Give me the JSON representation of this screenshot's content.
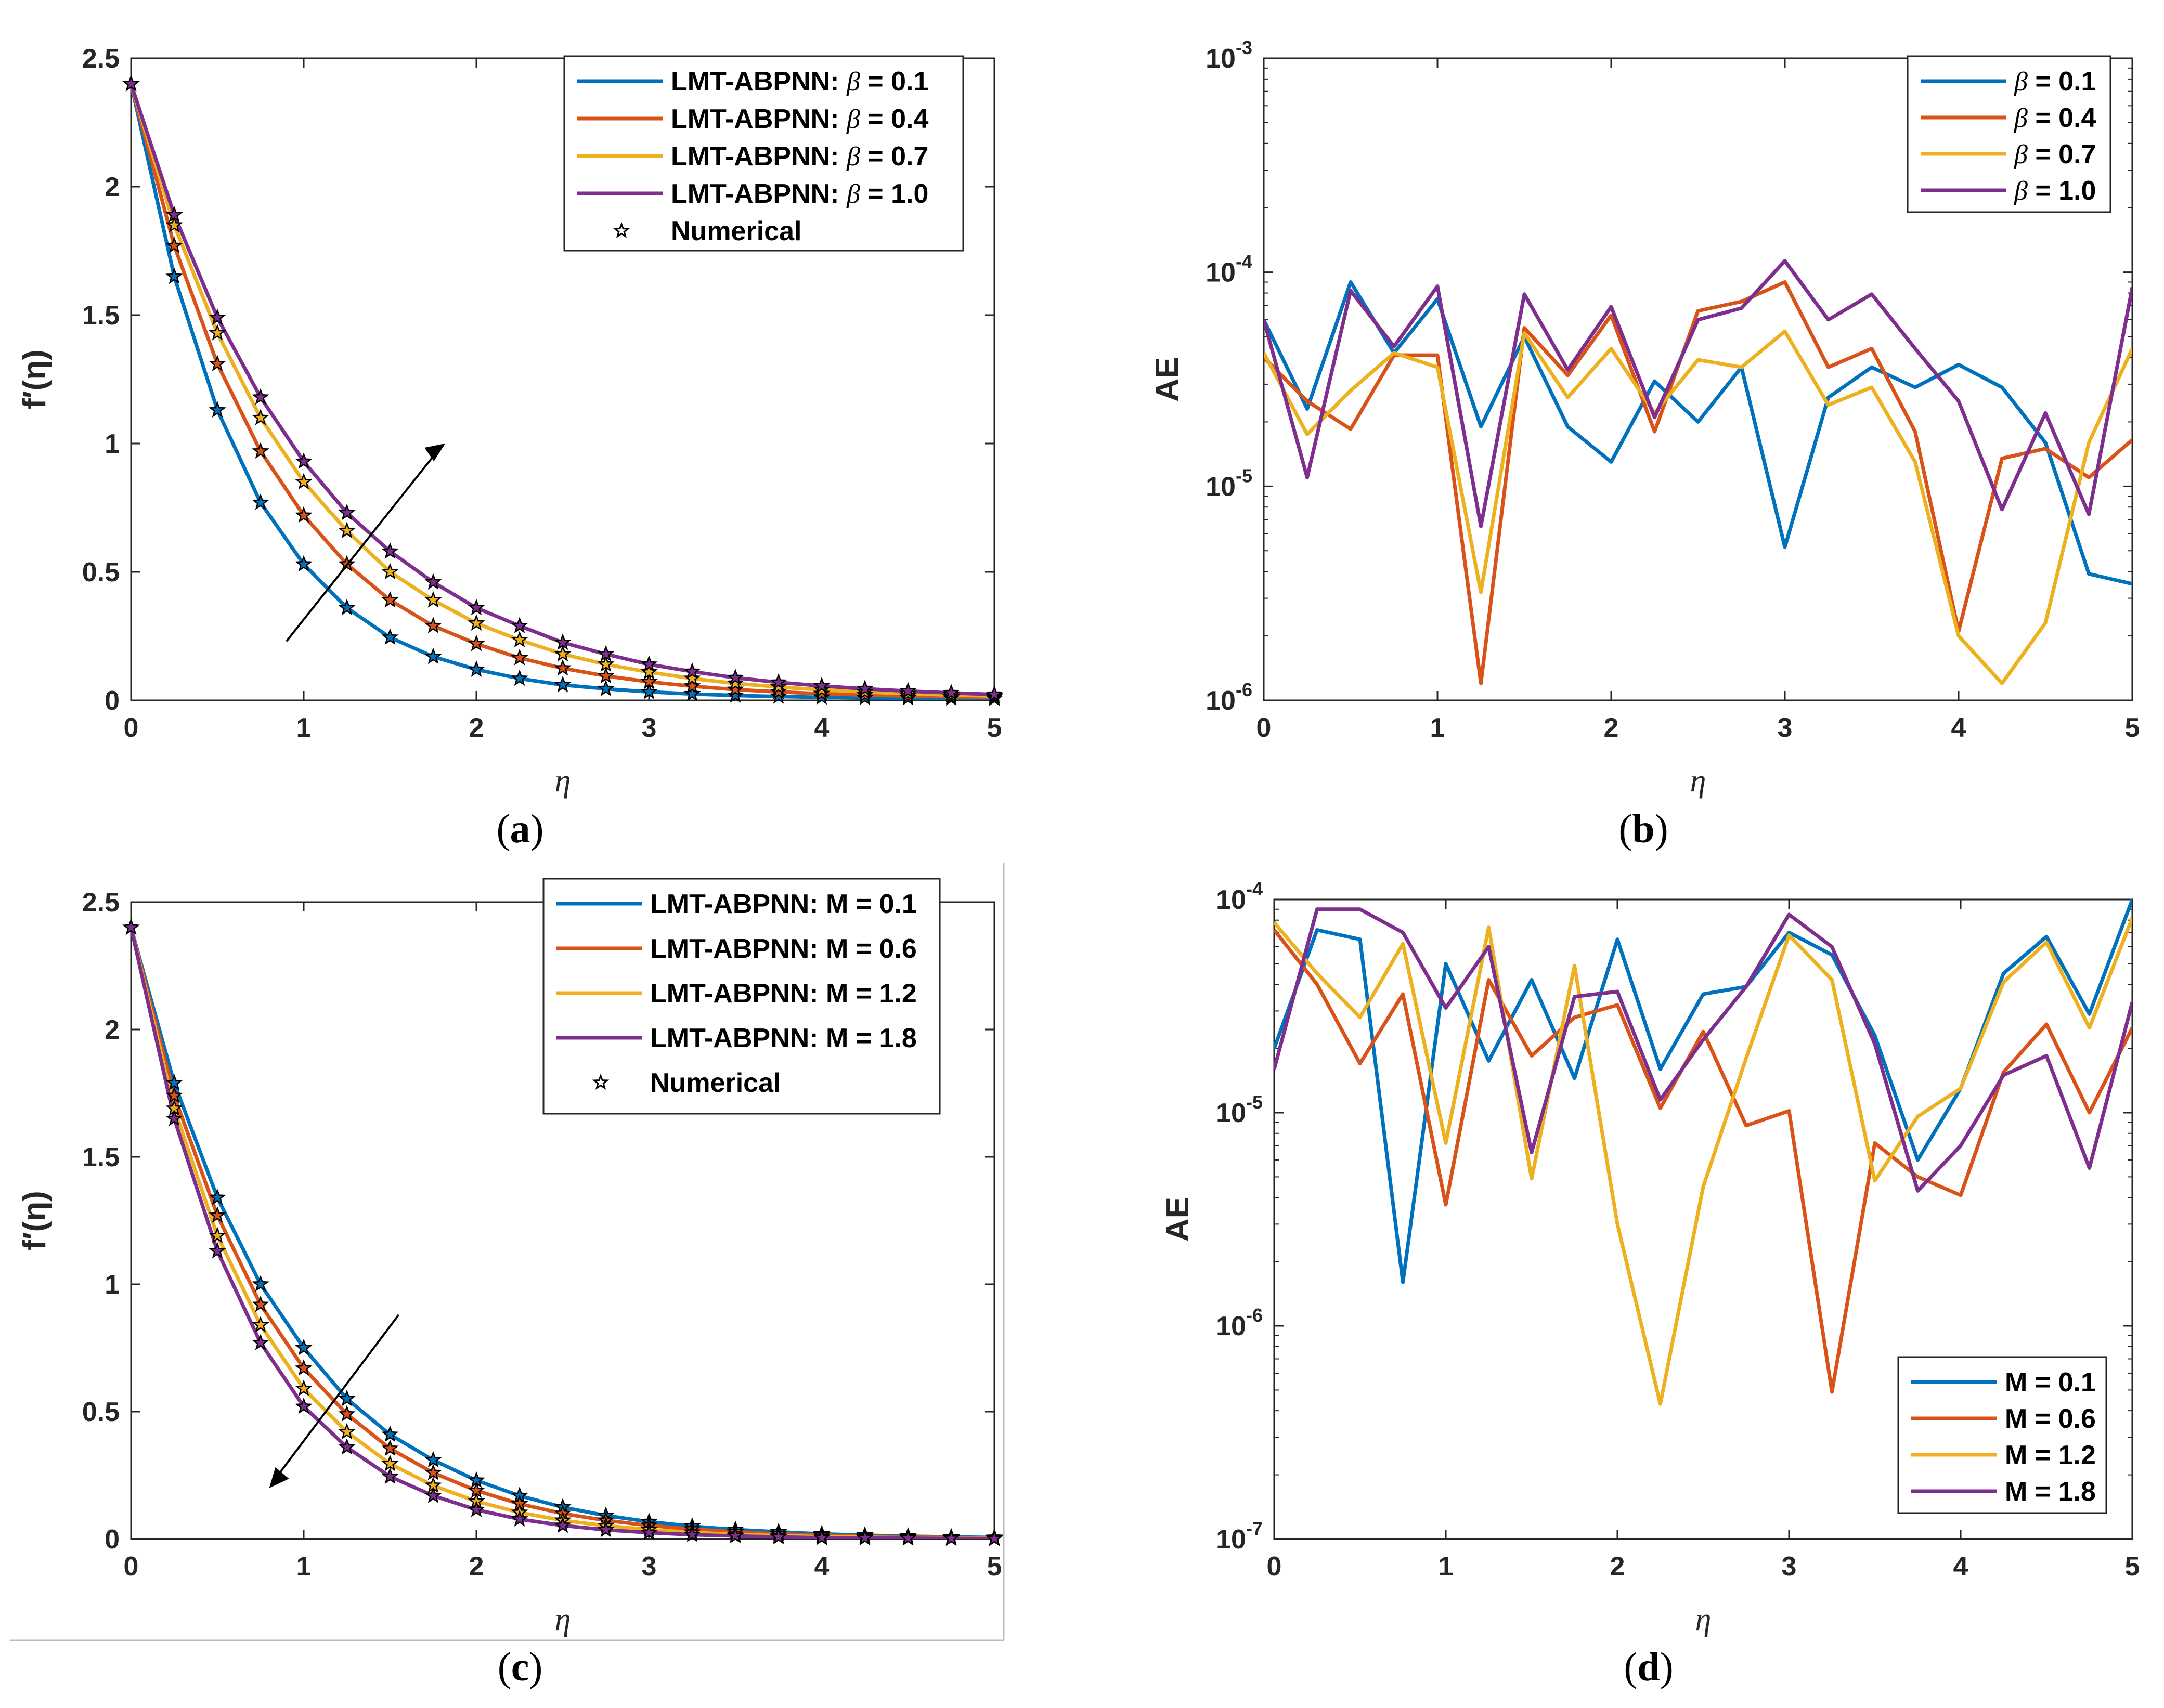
{
  "chart_data": [
    {
      "id": "a",
      "type": "line",
      "caption": "a",
      "ylabel": "f′(η)",
      "xlabel": "η",
      "xlim": [
        0,
        5
      ],
      "ylim": [
        0,
        2.5
      ],
      "yscale": "linear",
      "xticks": [
        "0",
        "1",
        "2",
        "3",
        "4",
        "5"
      ],
      "yticks": [
        "0",
        "0.5",
        "1",
        "1.5",
        "2",
        "2.5"
      ],
      "legend_position": "top-right",
      "trend_arrow": "up",
      "x": [
        0,
        0.25,
        0.5,
        0.75,
        1,
        1.25,
        1.5,
        1.75,
        2,
        2.25,
        2.5,
        2.75,
        3,
        3.25,
        3.5,
        3.75,
        4,
        4.25,
        4.5,
        4.75,
        5
      ],
      "series": [
        {
          "name": "LMT-ABPNN: β = 0.1",
          "color": "#0072BD",
          "values": [
            2.4,
            1.65,
            1.13,
            0.77,
            0.53,
            0.36,
            0.245,
            0.17,
            0.12,
            0.085,
            0.06,
            0.045,
            0.033,
            0.025,
            0.019,
            0.015,
            0.012,
            0.01,
            0.009,
            0.008,
            0.007
          ]
        },
        {
          "name": "LMT-ABPNN: β = 0.4",
          "color": "#D95319",
          "values": [
            2.4,
            1.77,
            1.31,
            0.97,
            0.72,
            0.53,
            0.39,
            0.29,
            0.22,
            0.165,
            0.125,
            0.095,
            0.072,
            0.055,
            0.042,
            0.033,
            0.026,
            0.021,
            0.017,
            0.014,
            0.012
          ]
        },
        {
          "name": "LMT-ABPNN: β = 0.7",
          "color": "#EDB120",
          "values": [
            2.4,
            1.85,
            1.43,
            1.1,
            0.85,
            0.66,
            0.5,
            0.39,
            0.3,
            0.235,
            0.18,
            0.14,
            0.11,
            0.085,
            0.066,
            0.052,
            0.041,
            0.033,
            0.026,
            0.021,
            0.017
          ]
        },
        {
          "name": "LMT-ABPNN: β = 1.0",
          "color": "#7E2F8E",
          "values": [
            2.4,
            1.89,
            1.49,
            1.18,
            0.93,
            0.73,
            0.58,
            0.46,
            0.36,
            0.29,
            0.225,
            0.18,
            0.14,
            0.112,
            0.088,
            0.07,
            0.056,
            0.045,
            0.036,
            0.029,
            0.023
          ]
        }
      ],
      "numerical_label": "Numerical"
    },
    {
      "id": "b",
      "type": "line",
      "caption": "b",
      "ylabel": "AE",
      "xlabel": "η",
      "xlim": [
        0,
        5
      ],
      "ylim": [
        1e-06,
        0.001
      ],
      "yscale": "log",
      "xticks": [
        "0",
        "1",
        "2",
        "3",
        "4",
        "5"
      ],
      "yticks": [
        {
          "base": "10",
          "exp": "-6"
        },
        {
          "base": "10",
          "exp": "-5"
        },
        {
          "base": "10",
          "exp": "-4"
        },
        {
          "base": "10",
          "exp": "-3"
        }
      ],
      "legend_position": "top-right",
      "x": [
        0,
        0.25,
        0.5,
        0.75,
        1,
        1.25,
        1.5,
        1.75,
        2,
        2.25,
        2.5,
        2.75,
        3,
        3.25,
        3.5,
        3.75,
        4,
        4.25,
        4.5,
        4.75,
        5
      ],
      "series": [
        {
          "name": "β = 0.1",
          "color": "#0072BD",
          "values": [
            6e-05,
            2.3e-05,
            9e-05,
            4.2e-05,
            7.5e-05,
            1.9e-05,
            5e-05,
            1.9e-05,
            1.3e-05,
            3.1e-05,
            2e-05,
            3.6e-05,
            5.2e-06,
            2.6e-05,
            3.6e-05,
            2.9e-05,
            3.7e-05,
            2.9e-05,
            1.6e-05,
            3.9e-06,
            3.5e-06
          ]
        },
        {
          "name": "β = 0.4",
          "color": "#D95319",
          "values": [
            4e-05,
            2.5e-05,
            1.85e-05,
            4.1e-05,
            4.1e-05,
            1.2e-06,
            5.5e-05,
            3.3e-05,
            6.3e-05,
            1.8e-05,
            6.6e-05,
            7.3e-05,
            9e-05,
            3.6e-05,
            4.4e-05,
            1.8e-05,
            2.1e-06,
            1.35e-05,
            1.5e-05,
            1.1e-05,
            1.65e-05
          ]
        },
        {
          "name": "β = 0.7",
          "color": "#EDB120",
          "values": [
            4.2e-05,
            1.75e-05,
            2.8e-05,
            4.2e-05,
            3.6e-05,
            3.2e-06,
            5.2e-05,
            2.6e-05,
            4.4e-05,
            2.2e-05,
            3.9e-05,
            3.6e-05,
            5.3e-05,
            2.4e-05,
            2.9e-05,
            1.3e-05,
            2e-06,
            1.2e-06,
            2.3e-06,
            1.6e-05,
            4.4e-05
          ]
        },
        {
          "name": "β = 1.0",
          "color": "#7E2F8E",
          "values": [
            6e-05,
            1.1e-05,
            8.2e-05,
            4.5e-05,
            8.6e-05,
            6.5e-06,
            7.9e-05,
            3.5e-05,
            6.9e-05,
            2.1e-05,
            6e-05,
            6.8e-05,
            0.000113,
            6e-05,
            7.9e-05,
            4.4e-05,
            2.5e-05,
            7.8e-06,
            2.2e-05,
            7.4e-06,
            8.5e-05
          ]
        }
      ]
    },
    {
      "id": "c",
      "type": "line",
      "caption": "c",
      "ylabel": "f′(η)",
      "xlabel": "η",
      "xlim": [
        0,
        5
      ],
      "ylim": [
        0,
        2.5
      ],
      "yscale": "linear",
      "xticks": [
        "0",
        "1",
        "2",
        "3",
        "4",
        "5"
      ],
      "yticks": [
        "0",
        "0.5",
        "1",
        "1.5",
        "2",
        "2.5"
      ],
      "legend_position": "top-right",
      "trend_arrow": "down",
      "x": [
        0,
        0.25,
        0.5,
        0.75,
        1,
        1.25,
        1.5,
        1.75,
        2,
        2.25,
        2.5,
        2.75,
        3,
        3.25,
        3.5,
        3.75,
        4,
        4.25,
        4.5,
        4.75,
        5
      ],
      "series": [
        {
          "name": "LMT-ABPNN: M = 0.1",
          "color": "#0072BD",
          "values": [
            2.4,
            1.79,
            1.34,
            1.0,
            0.75,
            0.55,
            0.41,
            0.31,
            0.23,
            0.17,
            0.125,
            0.092,
            0.068,
            0.05,
            0.037,
            0.028,
            0.02,
            0.015,
            0.011,
            0.008,
            0.006
          ]
        },
        {
          "name": "LMT-ABPNN: M = 0.6",
          "color": "#D95319",
          "values": [
            2.4,
            1.74,
            1.27,
            0.92,
            0.67,
            0.49,
            0.355,
            0.26,
            0.19,
            0.138,
            0.1,
            0.073,
            0.053,
            0.039,
            0.028,
            0.02,
            0.015,
            0.011,
            0.008,
            0.006,
            0.004
          ]
        },
        {
          "name": "LMT-ABPNN: M = 1.2",
          "color": "#EDB120",
          "values": [
            2.4,
            1.69,
            1.19,
            0.84,
            0.59,
            0.42,
            0.295,
            0.21,
            0.148,
            0.104,
            0.073,
            0.052,
            0.037,
            0.026,
            0.018,
            0.013,
            0.009,
            0.007,
            0.005,
            0.003,
            0.002
          ]
        },
        {
          "name": "LMT-ABPNN: M = 1.8",
          "color": "#7E2F8E",
          "values": [
            2.4,
            1.65,
            1.13,
            0.77,
            0.52,
            0.36,
            0.245,
            0.17,
            0.115,
            0.078,
            0.053,
            0.036,
            0.025,
            0.017,
            0.012,
            0.008,
            0.005,
            0.004,
            0.003,
            0.002,
            0.001
          ]
        }
      ],
      "numerical_label": "Numerical"
    },
    {
      "id": "d",
      "type": "line",
      "caption": "d",
      "ylabel": "AE",
      "xlabel": "η",
      "xlim": [
        0,
        5
      ],
      "ylim": [
        1e-07,
        0.0001
      ],
      "yscale": "log",
      "xticks": [
        "0",
        "1",
        "2",
        "3",
        "4",
        "5"
      ],
      "yticks": [
        {
          "base": "10",
          "exp": "-7"
        },
        {
          "base": "10",
          "exp": "-6"
        },
        {
          "base": "10",
          "exp": "-5"
        },
        {
          "base": "10",
          "exp": "-4"
        }
      ],
      "legend_position": "bottom-right",
      "x": [
        0,
        0.25,
        0.5,
        0.75,
        1,
        1.25,
        1.5,
        1.75,
        2,
        2.25,
        2.5,
        2.75,
        3,
        3.25,
        3.5,
        3.75,
        4,
        4.25,
        4.5,
        4.75,
        5
      ],
      "series": [
        {
          "name": "M = 0.1",
          "color": "#0072BD",
          "values": [
            2e-05,
            7.2e-05,
            6.5e-05,
            1.6e-06,
            5e-05,
            1.75e-05,
            4.2e-05,
            1.45e-05,
            6.5e-05,
            1.6e-05,
            3.6e-05,
            3.9e-05,
            7e-05,
            5.5e-05,
            2.3e-05,
            6e-06,
            1.3e-05,
            4.5e-05,
            6.7e-05,
            2.9e-05,
            0.0001
          ]
        },
        {
          "name": "M = 0.6",
          "color": "#D95319",
          "values": [
            7.2e-05,
            4e-05,
            1.7e-05,
            3.6e-05,
            3.7e-06,
            4.2e-05,
            1.85e-05,
            2.8e-05,
            3.2e-05,
            1.05e-05,
            2.4e-05,
            8.7e-06,
            1.02e-05,
            4.9e-07,
            7.2e-06,
            5e-06,
            4.1e-06,
            1.55e-05,
            2.6e-05,
            1e-05,
            2.5e-05
          ]
        },
        {
          "name": "M = 1.2",
          "color": "#EDB120",
          "values": [
            7.8e-05,
            4.5e-05,
            2.8e-05,
            6.2e-05,
            7.2e-06,
            7.4e-05,
            4.9e-06,
            4.9e-05,
            3e-06,
            4.3e-07,
            4.5e-06,
            1.8e-05,
            6.8e-05,
            4.2e-05,
            4.8e-06,
            9.6e-06,
            1.3e-05,
            4.1e-05,
            6.3e-05,
            2.5e-05,
            8.2e-05
          ]
        },
        {
          "name": "M = 1.8",
          "color": "#7E2F8E",
          "values": [
            1.6e-05,
            9e-05,
            9e-05,
            7e-05,
            3.1e-05,
            6e-05,
            6.5e-06,
            3.5e-05,
            3.7e-05,
            1.15e-05,
            2.2e-05,
            3.9e-05,
            8.5e-05,
            6e-05,
            2.1e-05,
            4.3e-06,
            7e-06,
            1.5e-05,
            1.85e-05,
            5.5e-06,
            3.3e-05
          ]
        }
      ]
    }
  ]
}
